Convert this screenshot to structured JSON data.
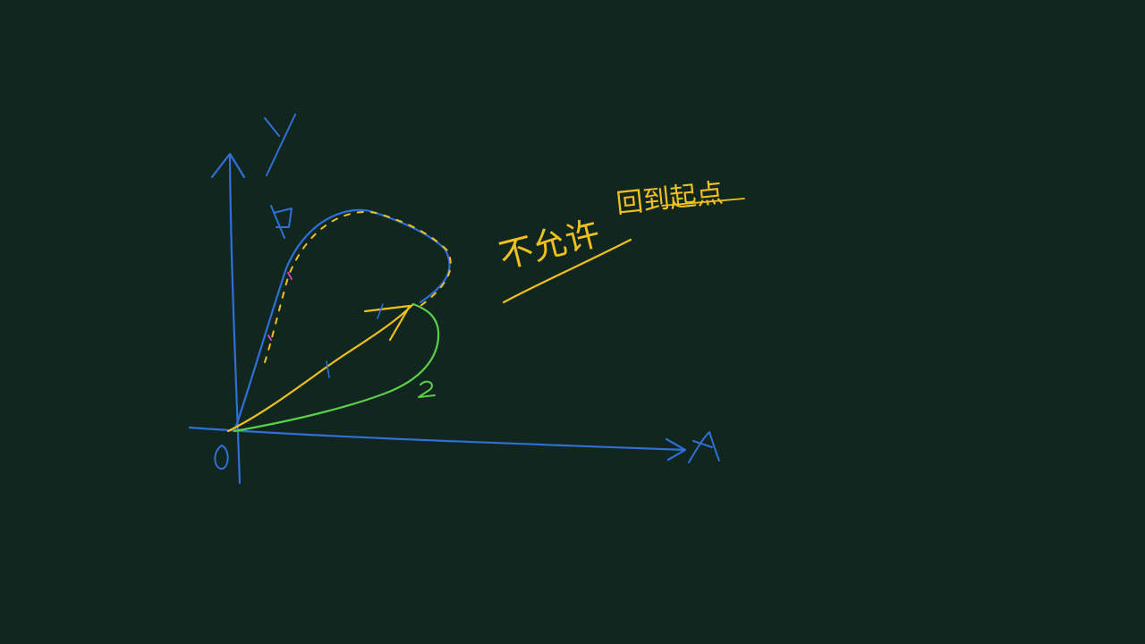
{
  "canvas": {
    "background_color": "#11261f"
  },
  "colors": {
    "axes": "#2f6fd6",
    "path_1": "#2f6fd6",
    "path_1_dashed": "#f0c020",
    "straight_path": "#f0c020",
    "path_2": "#5ccf4a",
    "annotation": "#f0c020",
    "pink_mark": "#d040c0"
  },
  "labels": {
    "origin": "O",
    "y_axis": "Y",
    "x_axis": "X",
    "path_1_label": "1",
    "path_2_label": "2",
    "annotation_text": "不允许",
    "annotation_extra": "回到起点"
  }
}
